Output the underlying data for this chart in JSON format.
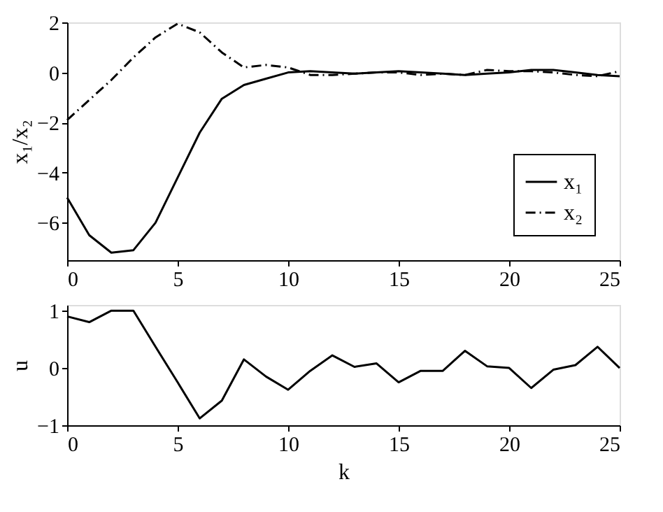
{
  "chart_data": [
    {
      "type": "line",
      "ylabel": "x₁/x₂",
      "x": [
        0,
        1,
        2,
        3,
        4,
        5,
        6,
        7,
        8,
        9,
        10,
        11,
        12,
        13,
        14,
        15,
        16,
        17,
        18,
        19,
        20,
        21,
        22,
        23,
        24,
        25
      ],
      "xlim": [
        0,
        25
      ],
      "xticks": [
        0,
        5,
        10,
        15,
        20,
        25
      ],
      "ylim": [
        -7.5,
        2
      ],
      "yticks": [
        -6,
        -4,
        -2,
        0,
        2
      ],
      "grid": false,
      "legend": "bottom right",
      "series": [
        {
          "name": "x₁",
          "color": "#000000",
          "line_style": "solid",
          "values": [
            -5,
            -6.5,
            -7.2,
            -7.1,
            -6,
            -4.2,
            -2.4,
            -1.05,
            -0.5,
            -0.25,
            0,
            0.05,
            0,
            -0.05,
            0,
            0.05,
            0,
            -0.05,
            -0.1,
            -0.05,
            0,
            0.1,
            0.1,
            0,
            -0.1,
            -0.15
          ]
        },
        {
          "name": "x₂",
          "color": "#000000",
          "line_style": "dashdot",
          "values": [
            -1.9,
            -1.1,
            -0.3,
            0.6,
            1.4,
            1.95,
            1.6,
            0.8,
            0.2,
            0.3,
            0.2,
            -0.1,
            -0.1,
            -0.05,
            0,
            0,
            -0.1,
            -0.05,
            -0.1,
            0.1,
            0.05,
            0.05,
            0,
            -0.1,
            -0.15,
            0.05
          ]
        }
      ]
    },
    {
      "type": "line",
      "xlabel": "k",
      "ylabel": "u",
      "x": [
        0,
        1,
        2,
        3,
        4,
        5,
        6,
        7,
        8,
        9,
        10,
        11,
        12,
        13,
        14,
        15,
        16,
        17,
        18,
        19,
        20,
        21,
        22,
        23,
        24,
        25
      ],
      "xlim": [
        0,
        25
      ],
      "xticks": [
        0,
        5,
        10,
        15,
        20,
        25
      ],
      "ylim": [
        -1,
        1.1
      ],
      "yticks": [
        -1,
        0,
        1
      ],
      "grid": false,
      "series": [
        {
          "color": "#000000",
          "line_style": "solid",
          "values": [
            0.9,
            0.8,
            1,
            1,
            0.37,
            -0.25,
            -0.88,
            -0.57,
            0.15,
            -0.15,
            -0.38,
            -0.05,
            0.22,
            0.02,
            0.08,
            -0.25,
            -0.05,
            -0.05,
            0.3,
            0.03,
            0,
            -0.35,
            -0.03,
            0.05,
            0.37,
            0
          ]
        }
      ]
    }
  ]
}
